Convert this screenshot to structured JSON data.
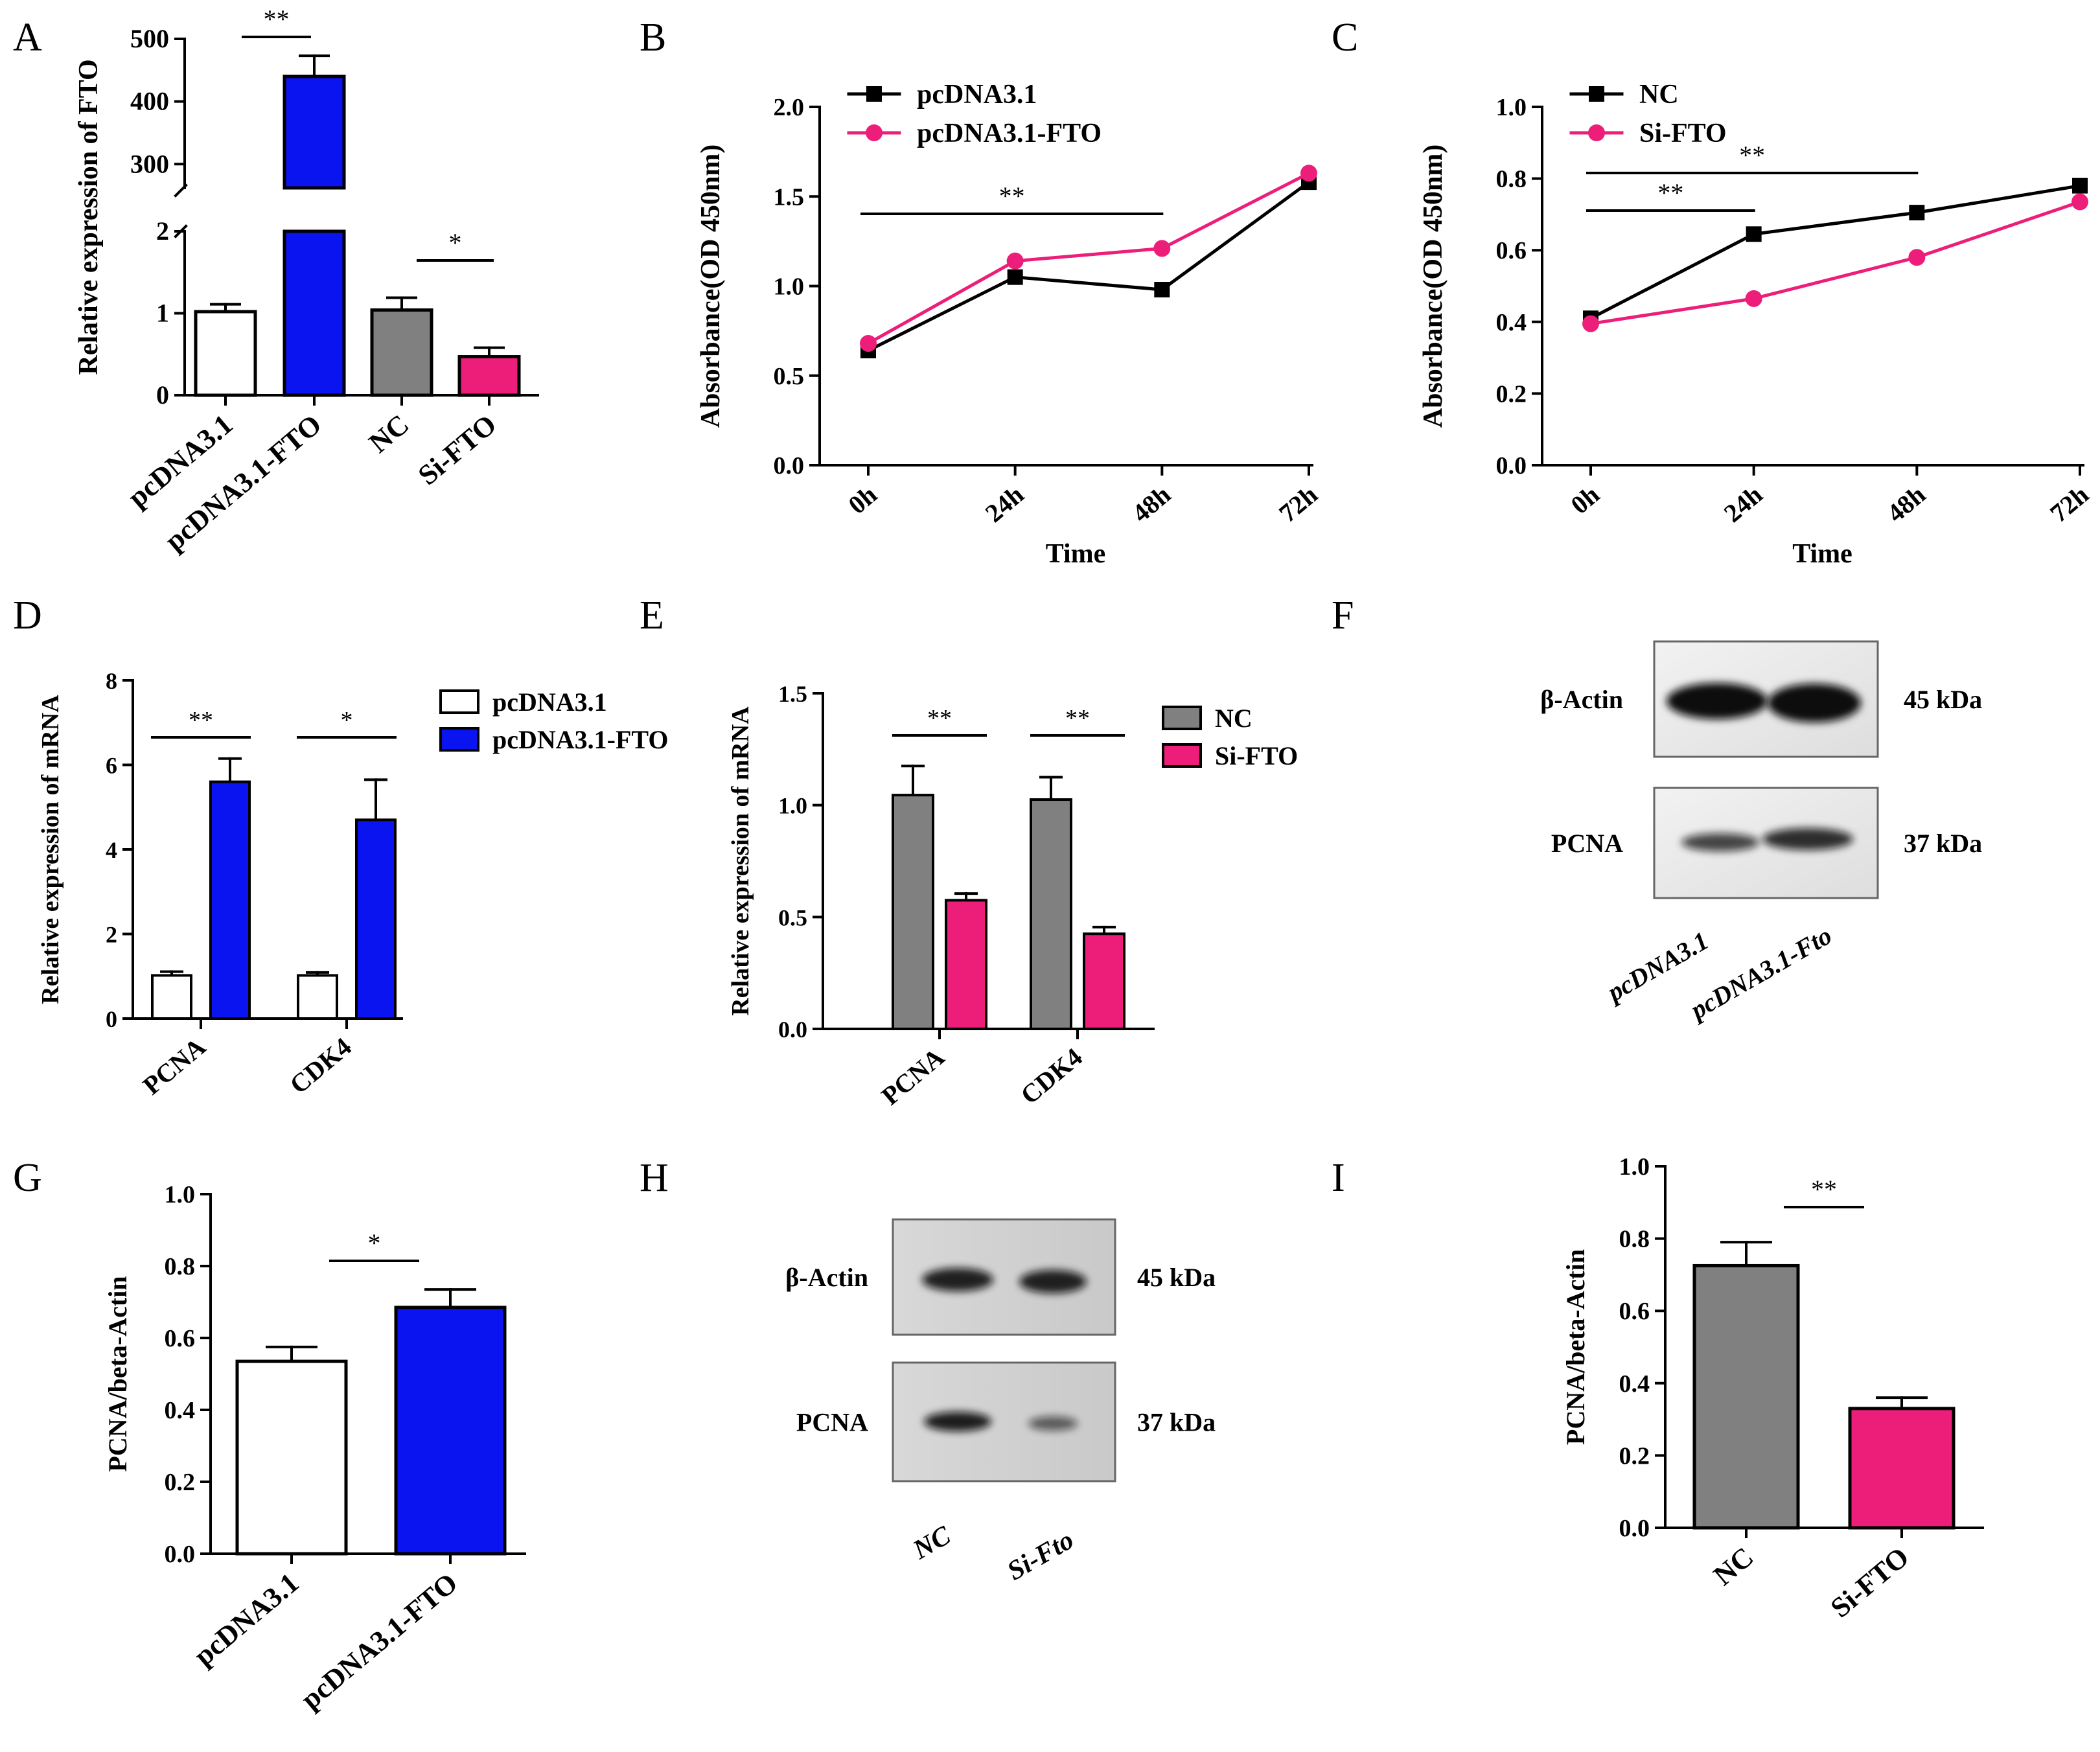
{
  "figure": {
    "colors": {
      "white": "#ffffff",
      "blue": "#0a14f0",
      "gray": "#808080",
      "pink": "#ed1e79",
      "black": "#000000"
    },
    "panel_labels": [
      "A",
      "B",
      "C",
      "D",
      "E",
      "F",
      "G",
      "H",
      "I"
    ]
  },
  "chart_data": [
    {
      "id": "A",
      "type": "bar",
      "ylabel": "Relative expression of FTO",
      "categories": [
        "pcDNA3.1",
        "pcDNA3.1-FTO",
        "NC",
        "Si-FTO"
      ],
      "values": [
        1.02,
        440,
        1.04,
        0.47
      ],
      "errors": [
        0.09,
        33,
        0.15,
        0.11
      ],
      "colors": [
        "#ffffff",
        "#0a14f0",
        "#808080",
        "#ed1e79"
      ],
      "broken_axis": {
        "lower": [
          0,
          2
        ],
        "lower_ticks": [
          "0",
          "1",
          "2"
        ],
        "upper": [
          262,
          500
        ],
        "upper_ticks": [
          "300",
          "400",
          "500"
        ]
      },
      "significance": [
        {
          "from": 0,
          "to": 1,
          "label": "**"
        },
        {
          "from": 2,
          "to": 3,
          "label": "*"
        }
      ]
    },
    {
      "id": "B",
      "type": "line",
      "xlabel": "Time",
      "ylabel": "Absorbance(OD 450nm)",
      "x": [
        "0h",
        "24h",
        "48h",
        "72h"
      ],
      "ylim": [
        0,
        2.0
      ],
      "yticks": [
        "0.0",
        "0.5",
        "1.0",
        "1.5",
        "2.0"
      ],
      "series": [
        {
          "name": "pcDNA3.1",
          "values": [
            0.64,
            1.05,
            0.98,
            1.58
          ],
          "color": "#000000",
          "marker": "square"
        },
        {
          "name": "pcDNA3.1-FTO",
          "values": [
            0.68,
            1.14,
            1.21,
            1.63
          ],
          "color": "#ed1e79",
          "marker": "circle"
        }
      ],
      "significance": [
        {
          "from": 0,
          "to": 2,
          "label": "**"
        }
      ],
      "legend": "top-left"
    },
    {
      "id": "C",
      "type": "line",
      "xlabel": "Time",
      "ylabel": "Absorbance(OD 450nm)",
      "x": [
        "0h",
        "24h",
        "48h",
        "72h"
      ],
      "ylim": [
        0,
        1.0
      ],
      "yticks": [
        "0.0",
        "0.2",
        "0.4",
        "0.6",
        "0.8",
        "1.0"
      ],
      "series": [
        {
          "name": "NC",
          "values": [
            0.41,
            0.645,
            0.705,
            0.78
          ],
          "color": "#000000",
          "marker": "square"
        },
        {
          "name": "Si-FTO",
          "values": [
            0.395,
            0.465,
            0.58,
            0.735
          ],
          "color": "#ed1e79",
          "marker": "circle"
        }
      ],
      "significance": [
        {
          "from": 0,
          "to": 1,
          "label": "**"
        },
        {
          "from": 0,
          "to": 2,
          "label": "**"
        }
      ],
      "legend": "top-left"
    },
    {
      "id": "D",
      "type": "bar",
      "ylabel": "Relative expression of mRNA",
      "categories": [
        "PCNA",
        "CDK4"
      ],
      "ylim": [
        0,
        8
      ],
      "yticks": [
        "0",
        "2",
        "4",
        "6",
        "8"
      ],
      "series": [
        {
          "name": "pcDNA3.1",
          "values": [
            1.02,
            1.02
          ],
          "errors": [
            0.09,
            0.07
          ],
          "color": "#ffffff"
        },
        {
          "name": "pcDNA3.1-FTO",
          "values": [
            5.6,
            4.7
          ],
          "errors": [
            0.55,
            0.95
          ],
          "color": "#0a14f0"
        }
      ],
      "significance": [
        {
          "group": 0,
          "label": "**"
        },
        {
          "group": 1,
          "label": "*"
        }
      ],
      "legend": "right"
    },
    {
      "id": "E",
      "type": "bar",
      "ylabel": "Relative expression of mRNA",
      "categories": [
        "PCNA",
        "CDK4"
      ],
      "ylim": [
        0,
        1.5
      ],
      "yticks": [
        "0.0",
        "0.5",
        "1.0",
        "1.5"
      ],
      "series": [
        {
          "name": "NC",
          "values": [
            1.045,
            1.025
          ],
          "errors": [
            0.13,
            0.1
          ],
          "color": "#808080"
        },
        {
          "name": "Si-FTO",
          "values": [
            0.575,
            0.425
          ],
          "errors": [
            0.03,
            0.03
          ],
          "color": "#ed1e79"
        }
      ],
      "significance": [
        {
          "group": 0,
          "label": "**"
        },
        {
          "group": 1,
          "label": "**"
        }
      ],
      "legend": "right"
    },
    {
      "id": "G",
      "type": "bar",
      "ylabel": "PCNA/beta-Actin",
      "categories": [
        "pcDNA3.1",
        "pcDNA3.1-FTO"
      ],
      "values": [
        0.535,
        0.685
      ],
      "errors": [
        0.04,
        0.05
      ],
      "colors": [
        "#ffffff",
        "#0a14f0"
      ],
      "ylim": [
        0,
        1.0
      ],
      "yticks": [
        "0.0",
        "0.2",
        "0.4",
        "0.6",
        "0.8",
        "1.0"
      ],
      "significance": [
        {
          "from": 0,
          "to": 1,
          "label": "*"
        }
      ]
    },
    {
      "id": "I",
      "type": "bar",
      "ylabel": "PCNA/beta-Actin",
      "categories": [
        "NC",
        "Si-FTO"
      ],
      "values": [
        0.725,
        0.33
      ],
      "errors": [
        0.065,
        0.03
      ],
      "colors": [
        "#808080",
        "#ed1e79"
      ],
      "ylim": [
        0,
        1.0
      ],
      "yticks": [
        "0.0",
        "0.2",
        "0.4",
        "0.6",
        "0.8",
        "1.0"
      ],
      "significance": [
        {
          "from": 0,
          "to": 1,
          "label": "**"
        }
      ]
    }
  ],
  "blots": [
    {
      "id": "F",
      "rows": [
        {
          "protein": "β-Actin",
          "size": "45 kDa"
        },
        {
          "protein": "PCNA",
          "size": "37 kDa"
        }
      ],
      "lanes": [
        "pcDNA3.1",
        "pcDNA3.1-Fto"
      ]
    },
    {
      "id": "H",
      "rows": [
        {
          "protein": "β-Actin",
          "size": "45 kDa"
        },
        {
          "protein": "PCNA",
          "size": "37 kDa"
        }
      ],
      "lanes": [
        "NC",
        "Si-Fto"
      ]
    }
  ]
}
